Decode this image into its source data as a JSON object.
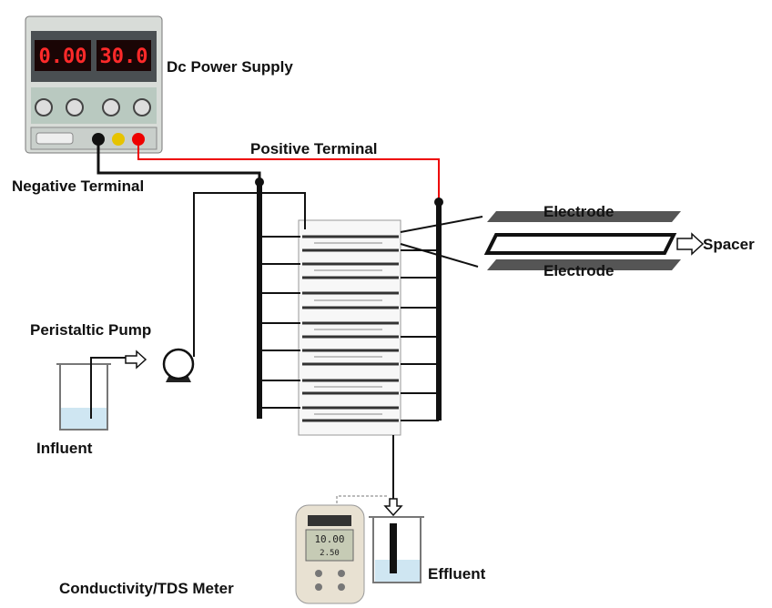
{
  "power_supply": {
    "label": "Dc Power Supply",
    "displays": [
      "0.00",
      "30.0"
    ]
  },
  "terminals": {
    "positive": "Positive Terminal",
    "negative": "Negative Terminal"
  },
  "cell_detail": {
    "electrode_top": "Electrode",
    "spacer": "Spacer",
    "electrode_bottom": "Electrode"
  },
  "pump": {
    "label": "Peristaltic Pump"
  },
  "influent": {
    "label": "Influent"
  },
  "effluent": {
    "label": "Effluent"
  },
  "meter": {
    "label": "Conductivity/TDS Meter",
    "readings": [
      "10.00",
      "2.50"
    ]
  }
}
